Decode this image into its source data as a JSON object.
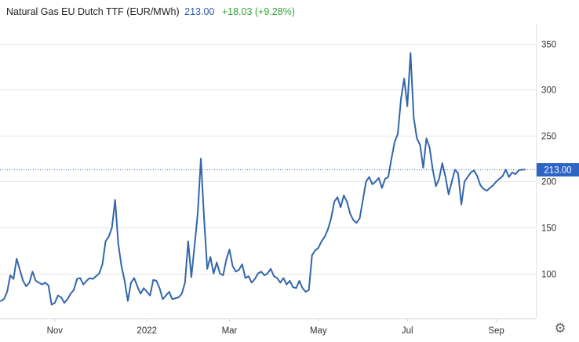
{
  "header": {
    "title": "Natural Gas EU Dutch TTF (EUR/MWh)",
    "last": "213.00",
    "change": "+18.03 (+9.28%)"
  },
  "chart_data": {
    "type": "line",
    "title": "Natural Gas EU Dutch TTF (EUR/MWh)",
    "xlabel": "",
    "ylabel": "",
    "ylim": [
      51,
      372
    ],
    "y_ticks": [
      100,
      150,
      200,
      250,
      300,
      350
    ],
    "x_ticks": [
      {
        "label": "Nov",
        "x": 17
      },
      {
        "label": "2022",
        "x": 46
      },
      {
        "label": "Mar",
        "x": 72
      },
      {
        "label": "May",
        "x": 100
      },
      {
        "label": "Jul",
        "x": 128
      },
      {
        "label": "Sep",
        "x": 156
      }
    ],
    "last_value": 213.0,
    "last_value_label": "213.00",
    "grid": true,
    "colors": {
      "line": "#3366aa",
      "badge": "#2d65c4",
      "last_line": "#2d65c4",
      "grid": "#e6e6e6"
    },
    "series": [
      {
        "x": [
          0,
          1,
          2,
          3,
          4,
          5,
          6,
          7,
          8,
          9,
          10,
          11,
          12,
          13,
          14,
          15,
          16,
          17,
          18,
          19,
          20,
          21,
          22,
          23,
          24,
          25,
          26,
          27,
          28,
          29,
          30,
          31,
          32,
          33,
          34,
          35,
          36,
          37,
          38,
          39,
          40,
          41,
          42,
          43,
          44,
          45,
          46,
          47,
          48,
          49,
          50,
          51,
          52,
          53,
          54,
          55,
          56,
          57,
          58,
          59,
          60,
          61,
          62,
          63,
          64,
          65,
          66,
          67,
          68,
          69,
          70,
          71,
          72,
          73,
          74,
          75,
          76,
          77,
          78,
          79,
          80,
          81,
          82,
          83,
          84,
          85,
          86,
          87,
          88,
          89,
          90,
          91,
          92,
          93,
          94,
          95,
          96,
          97,
          98,
          99,
          100,
          101,
          102,
          103,
          104,
          105,
          106,
          107,
          108,
          109,
          110,
          111,
          112,
          113,
          114,
          115,
          116,
          117,
          118,
          119,
          120,
          121,
          122,
          123,
          124,
          125,
          126,
          127,
          128,
          129,
          130,
          131,
          132,
          133,
          134,
          135,
          136,
          137,
          138,
          139,
          140,
          141,
          142,
          143,
          144,
          145,
          146,
          147,
          148,
          149,
          150,
          151,
          152,
          153,
          154,
          155,
          156,
          157,
          158,
          159,
          160,
          161,
          162,
          163,
          164,
          165
        ],
        "y": [
          70,
          72,
          80,
          98,
          94,
          116,
          104,
          92,
          86,
          90,
          102,
          92,
          90,
          88,
          90,
          87,
          66,
          68,
          76,
          74,
          68,
          72,
          78,
          82,
          94,
          95,
          88,
          92,
          95,
          94,
          97,
          100,
          110,
          135,
          140,
          150,
          180,
          132,
          108,
          92,
          70,
          90,
          95,
          86,
          78,
          84,
          80,
          76,
          93,
          92,
          84,
          72,
          76,
          80,
          72,
          73,
          74,
          78,
          90,
          135,
          96,
          130,
          165,
          225,
          160,
          105,
          118,
          100,
          112,
          100,
          98,
          115,
          126,
          108,
          102,
          104,
          110,
          95,
          97,
          90,
          94,
          100,
          102,
          98,
          100,
          105,
          97,
          95,
          90,
          95,
          88,
          92,
          85,
          84,
          92,
          84,
          80,
          82,
          120,
          125,
          128,
          135,
          140,
          148,
          160,
          178,
          183,
          172,
          185,
          178,
          165,
          158,
          155,
          160,
          180,
          200,
          205,
          197,
          200,
          204,
          193,
          203,
          205,
          225,
          243,
          252,
          290,
          312,
          282,
          340,
          270,
          247,
          240,
          215,
          247,
          237,
          213,
          195,
          203,
          220,
          205,
          186,
          200,
          213,
          209,
          175,
          200,
          205,
          210,
          212,
          206,
          196,
          192,
          190,
          193,
          196,
          200,
          203,
          206,
          213,
          205,
          210,
          208,
          212,
          213,
          213
        ]
      }
    ]
  }
}
